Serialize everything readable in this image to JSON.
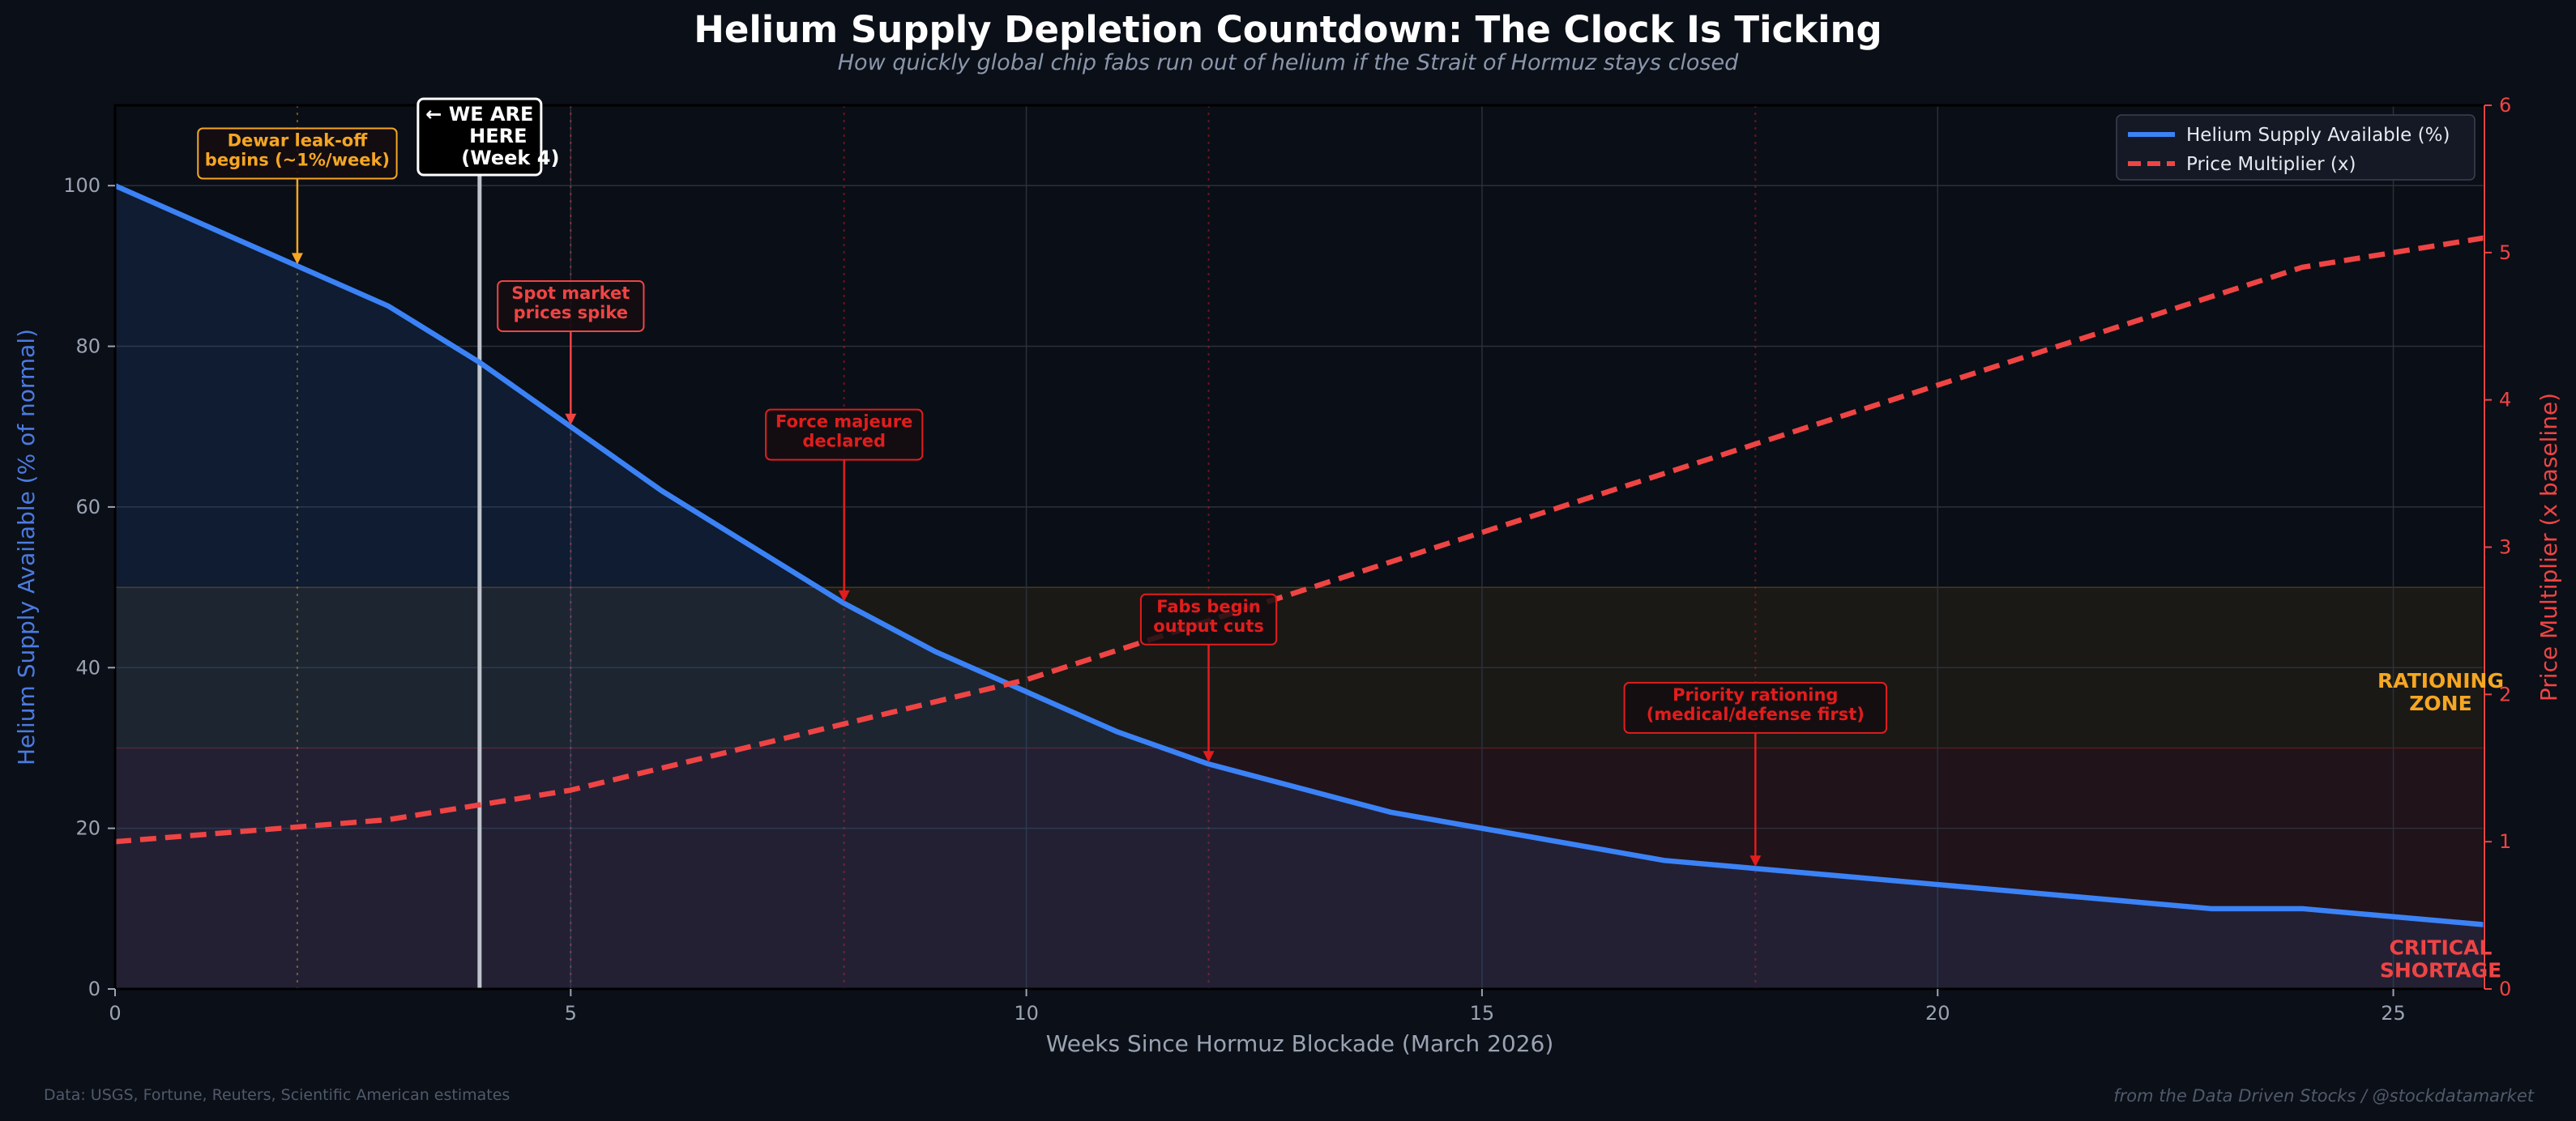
{
  "header": {
    "title": "Helium Supply Depletion Countdown: The Clock Is Ticking",
    "subtitle": "How quickly global chip fabs run out of helium if the Strait of Hormuz stays closed"
  },
  "footer": {
    "source": "Data: USGS, Fortune, Reuters, Scientific American estimates",
    "credit": "from the Data Driven Stocks / @stockdatamarket"
  },
  "colors": {
    "background": "#0b0f17",
    "plot_bg": "#0a0e16",
    "supply": "#3b82f6",
    "price": "#ef4444",
    "rationing": "#f5a623",
    "critical": "#ef4444",
    "annotation_red": "#e11d1d",
    "axis_text": "#9aa3b2"
  },
  "chart_data": {
    "type": "line",
    "title": "Helium Supply Depletion Countdown: The Clock Is Ticking",
    "subtitle": "How quickly global chip fabs run out of helium if the Strait of Hormuz stays closed",
    "xlabel": "Weeks Since Hormuz Blockade (March 2026)",
    "ylabel_left": "Helium Supply Available (% of normal)",
    "ylabel_right": "Price Multiplier (x baseline)",
    "xlim": [
      0,
      26
    ],
    "ylim_left": [
      0,
      110
    ],
    "ylim_right": [
      0,
      6
    ],
    "x_ticks": [
      0,
      5,
      10,
      15,
      20,
      25
    ],
    "y_ticks_left": [
      0,
      20,
      40,
      60,
      80,
      100
    ],
    "y_ticks_right": [
      0,
      1,
      2,
      3,
      4,
      5,
      6
    ],
    "grid": true,
    "legend_position": "top-right",
    "series": [
      {
        "name": "Helium Supply Available (%)",
        "axis": "left",
        "style": "solid",
        "color": "#3b82f6",
        "x": [
          0,
          1,
          2,
          3,
          4,
          5,
          6,
          7,
          8,
          9,
          10,
          11,
          12,
          13,
          14,
          15,
          16,
          17,
          18,
          19,
          20,
          21,
          22,
          23,
          24,
          25,
          26
        ],
        "y": [
          100,
          95,
          90,
          85,
          78,
          70,
          62,
          55,
          48,
          42,
          37,
          32,
          28,
          25,
          22,
          20,
          18,
          16,
          15,
          14,
          13,
          12,
          11,
          10,
          10,
          9,
          8
        ]
      },
      {
        "name": "Price Multiplier (x)",
        "axis": "right",
        "style": "dashed",
        "color": "#ef4444",
        "x": [
          0,
          1,
          2,
          3,
          4,
          5,
          6,
          7,
          8,
          9,
          10,
          11,
          12,
          13,
          14,
          15,
          16,
          17,
          18,
          19,
          20,
          21,
          22,
          23,
          24,
          25,
          26
        ],
        "y": [
          1.0,
          1.05,
          1.1,
          1.15,
          1.25,
          1.35,
          1.5,
          1.65,
          1.8,
          1.95,
          2.1,
          2.3,
          2.5,
          2.7,
          2.9,
          3.1,
          3.3,
          3.5,
          3.7,
          3.9,
          4.1,
          4.3,
          4.5,
          4.7,
          4.9,
          5.0,
          5.1
        ]
      }
    ],
    "zones": [
      {
        "label": "RATIONING ZONE",
        "lines": [
          "RATIONING",
          "ZONE"
        ],
        "y_from": 30,
        "y_to": 50,
        "color": "#f5a623"
      },
      {
        "label": "CRITICAL SHORTAGE",
        "lines": [
          "CRITICAL",
          "SHORTAGE"
        ],
        "y_from": 0,
        "y_to": 30,
        "color": "#ef4444"
      }
    ],
    "now_marker": {
      "x": 4,
      "lines": [
        "← WE ARE",
        "HERE",
        "(Week 4)"
      ]
    },
    "annotations": [
      {
        "x": 2,
        "y": 90,
        "lines": [
          "Dewar leak-off",
          "begins (~1%/week)"
        ],
        "color": "#f5a623",
        "text_y": 104
      },
      {
        "x": 5,
        "y": 70,
        "lines": [
          "Spot market",
          "prices spike"
        ],
        "color": "#ef4444",
        "text_y": 85
      },
      {
        "x": 8,
        "y": 48,
        "lines": [
          "Force majeure",
          "declared"
        ],
        "color": "#e11d1d",
        "text_y": 69
      },
      {
        "x": 12,
        "y": 28,
        "lines": [
          "Fabs begin",
          "output cuts"
        ],
        "color": "#e11d1d",
        "text_y": 46
      },
      {
        "x": 18,
        "y": 15,
        "lines": [
          "Priority rationing",
          "(medical/defense first)"
        ],
        "color": "#e11d1d",
        "text_y": 35
      }
    ]
  }
}
